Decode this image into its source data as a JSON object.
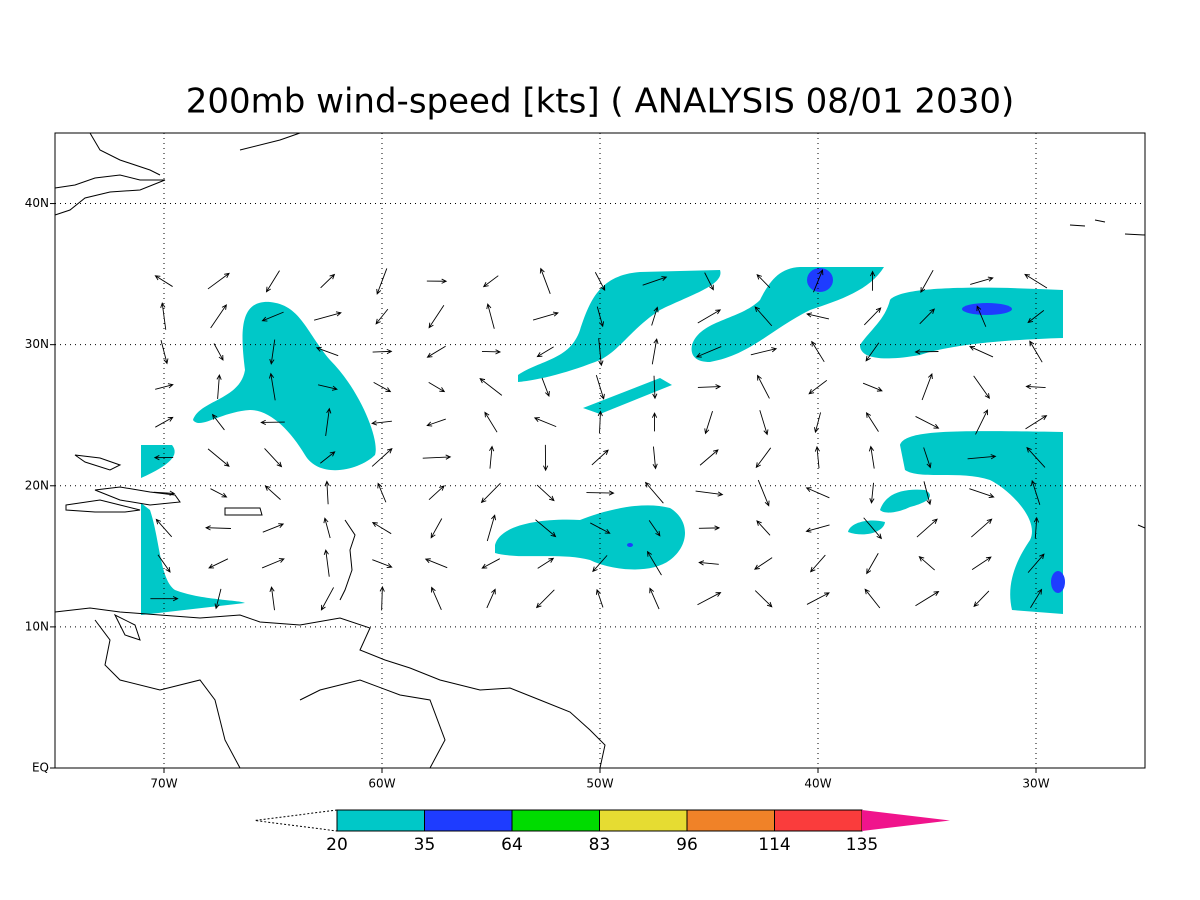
{
  "chart_data": {
    "type": "map",
    "title": "200mb wind-speed [kts] ( ANALYSIS 08/01 2030)",
    "xlim": [
      -75,
      -25
    ],
    "ylim": [
      0,
      45
    ],
    "xticks": [
      {
        "value": -70,
        "label": "70W"
      },
      {
        "value": -60,
        "label": "60W"
      },
      {
        "value": -50,
        "label": "50W"
      },
      {
        "value": -40,
        "label": "40W"
      },
      {
        "value": -30,
        "label": "30W"
      }
    ],
    "yticks": [
      {
        "value": 0,
        "label": "EQ"
      },
      {
        "value": 10,
        "label": "10N"
      },
      {
        "value": 20,
        "label": "20N"
      },
      {
        "value": 30,
        "label": "30N"
      },
      {
        "value": 40,
        "label": "40N"
      }
    ],
    "grid": true,
    "colorbar": {
      "levels": [
        20,
        35,
        64,
        83,
        96,
        114,
        135
      ],
      "colors": [
        "#00c8c8",
        "#1e3cff",
        "#00dc00",
        "#e6dc32",
        "#f08228",
        "#fa3c3c"
      ],
      "over_color": "#f0148c"
    }
  }
}
